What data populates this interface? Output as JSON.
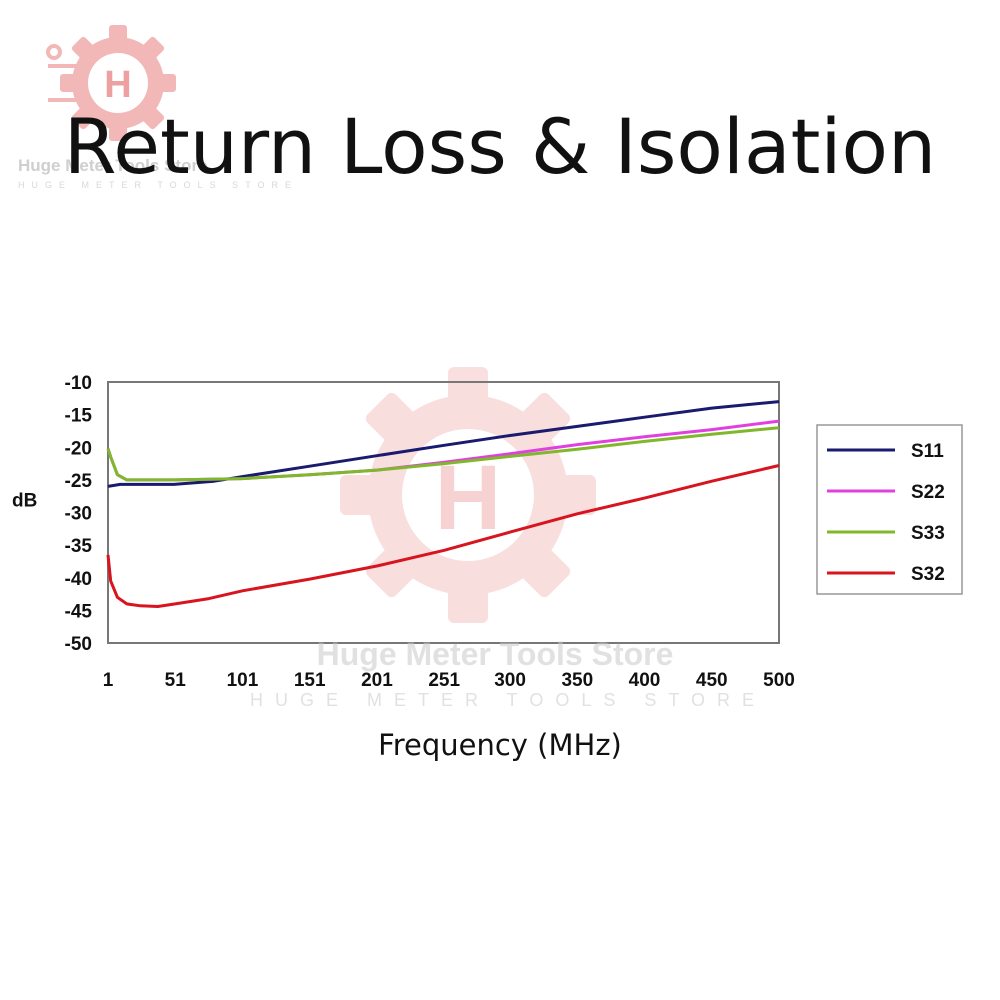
{
  "logo": {
    "letter": "H",
    "name": "Huge Meter Tools Store",
    "sub": "HUGE METER TOOLS STORE"
  },
  "watermark": {
    "name": "Huge Meter Tools Store",
    "sub": "HUGE METER TOOLS STORE"
  },
  "colors": {
    "S11": "#1a1a6e",
    "S22": "#e040e0",
    "S33": "#7fb82a",
    "S32": "#d8141e"
  },
  "chart_data": {
    "type": "line",
    "title": "Return Loss & Isolation",
    "xlabel": "Frequency (MHz)",
    "ylabel": "dB",
    "xlim": [
      1,
      500
    ],
    "ylim": [
      -50,
      -10
    ],
    "x_ticks": [
      1,
      51,
      101,
      151,
      201,
      251,
      300,
      350,
      400,
      450,
      500
    ],
    "y_ticks": [
      -10,
      -15,
      -20,
      -25,
      -30,
      -35,
      -40,
      -45,
      -50
    ],
    "y_tick_labels": [
      "-10",
      "-15",
      "-20",
      "-25",
      "-30",
      "-35",
      "-40",
      "-45",
      "-50"
    ],
    "grid": false,
    "legend_position": "right",
    "series": [
      {
        "name": "S11",
        "x": [
          1,
          10,
          50,
          80,
          101,
          151,
          201,
          251,
          300,
          350,
          400,
          450,
          500
        ],
        "y": [
          -26,
          -25.7,
          -25.7,
          -25.2,
          -24.5,
          -22.9,
          -21.3,
          -19.7,
          -18.2,
          -16.8,
          -15.4,
          -14.0,
          -13.0
        ]
      },
      {
        "name": "S22",
        "x": [
          1,
          3,
          8,
          15,
          51,
          101,
          151,
          201,
          251,
          300,
          350,
          400,
          450,
          500
        ],
        "y": [
          -20.2,
          -21.5,
          -24.2,
          -25.0,
          -25.0,
          -24.8,
          -24.2,
          -23.5,
          -22.3,
          -21.0,
          -19.6,
          -18.4,
          -17.3,
          -16.0
        ]
      },
      {
        "name": "S33",
        "x": [
          1,
          3,
          8,
          15,
          51,
          101,
          151,
          201,
          251,
          300,
          350,
          400,
          450,
          500
        ],
        "y": [
          -20.2,
          -21.5,
          -24.2,
          -25.0,
          -25.0,
          -24.8,
          -24.2,
          -23.5,
          -22.5,
          -21.4,
          -20.3,
          -19.1,
          -18.0,
          -17.0
        ]
      },
      {
        "name": "S32",
        "x": [
          1,
          3,
          8,
          15,
          25,
          38,
          51,
          76,
          101,
          151,
          201,
          251,
          300,
          350,
          400,
          450,
          500
        ],
        "y": [
          -36.5,
          -40.5,
          -43.0,
          -44.0,
          -44.3,
          -44.4,
          -44.0,
          -43.2,
          -42.0,
          -40.2,
          -38.2,
          -35.8,
          -33.0,
          -30.2,
          -27.8,
          -25.2,
          -22.8
        ]
      }
    ]
  }
}
